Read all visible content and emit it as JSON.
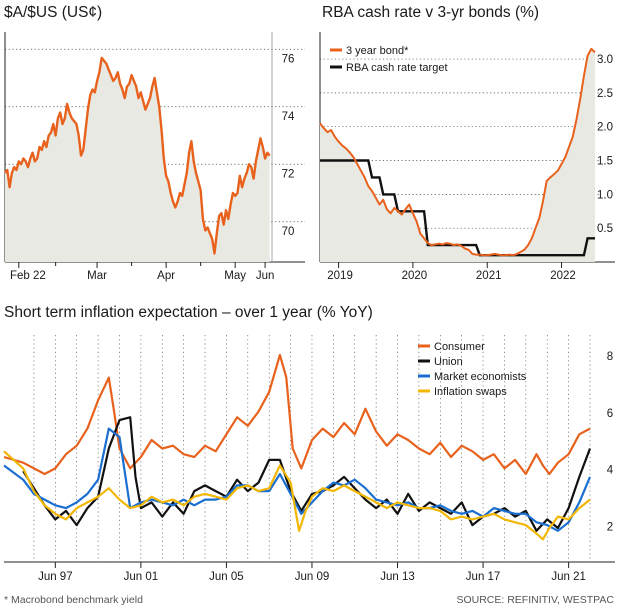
{
  "colors": {
    "orange": "#e8621d",
    "black": "#111111",
    "blue": "#1a6fd1",
    "yellow": "#f2b705",
    "grid": "#444444",
    "fill": "#e9e9e4"
  },
  "titles": {
    "chart1": "$A/$US (US¢)",
    "chart2": "RBA cash rate v 3-yr bonds (%)",
    "chart3": "Short term inflation expectation – over 1 year (% YoY)"
  },
  "footer": {
    "note": "* Macrobond benchmark yield",
    "source": "SOURCE: REFINITIV, WESTPAC"
  },
  "chart_data": [
    {
      "type": "line",
      "title": "$A/$US (US¢)",
      "x_tick_labels": [
        "Feb 22",
        "Mar",
        "Apr",
        "May",
        "Jun"
      ],
      "y_tick_labels": [
        "70",
        "72",
        "74",
        "76"
      ],
      "ylim": [
        68.6,
        76.6
      ],
      "xlim": [
        0,
        116
      ],
      "grid": "horizontal dotted",
      "series": [
        {
          "name": "AUD/USD",
          "color": "#e8621d",
          "values": [
            71.7,
            71.8,
            71.2,
            71.7,
            71.9,
            71.8,
            72.1,
            72.0,
            72.2,
            72.1,
            71.9,
            72.2,
            72.4,
            72.1,
            72.2,
            72.6,
            72.5,
            72.8,
            72.6,
            73.0,
            73.1,
            73.4,
            73.0,
            73.6,
            73.8,
            73.4,
            73.6,
            74.1,
            73.8,
            73.6,
            73.5,
            73.4,
            73.0,
            72.3,
            72.5,
            73.2,
            73.9,
            74.4,
            74.6,
            74.5,
            74.9,
            75.2,
            75.7,
            75.6,
            75.5,
            75.3,
            75.1,
            74.9,
            75.0,
            75.2,
            74.8,
            74.6,
            74.3,
            74.7,
            74.8,
            75.1,
            74.9,
            74.7,
            74.3,
            74.5,
            74.2,
            73.9,
            74.1,
            74.3,
            74.7,
            75.0,
            74.5,
            74.0,
            73.2,
            72.2,
            71.6,
            71.4,
            71.0,
            70.7,
            70.5,
            70.7,
            71.0,
            70.9,
            71.3,
            71.7,
            72.4,
            72.8,
            72.1,
            71.7,
            71.4,
            71.1,
            70.1,
            69.7,
            69.8,
            69.6,
            69.4,
            68.9,
            69.6,
            70.2,
            70.3,
            69.9,
            70.4,
            70.1,
            70.6,
            71.0,
            70.9,
            71.0,
            71.6,
            71.2,
            71.5,
            71.7,
            72.0,
            71.9,
            71.5,
            72.1,
            72.5,
            72.9,
            72.6,
            72.2,
            72.4,
            72.3
          ]
        }
      ]
    },
    {
      "type": "line",
      "title": "RBA cash rate v 3-yr bonds (%)",
      "x_tick_labels": [
        "2019",
        "2020",
        "2021",
        "2022"
      ],
      "y_tick_labels": [
        "0.5",
        "1.0",
        "1.5",
        "2.0",
        "2.5",
        "3.0"
      ],
      "ylim": [
        0,
        3.4
      ],
      "xlim": [
        2018.75,
        2022.45
      ],
      "grid": "horizontal dotted",
      "legend": [
        "3 year bond*",
        "RBA cash rate target"
      ],
      "series": [
        {
          "name": "3 year bond*",
          "color": "#e8621d",
          "x": [
            2018.75,
            2018.8,
            2018.85,
            2018.9,
            2018.95,
            2019.0,
            2019.05,
            2019.1,
            2019.15,
            2019.2,
            2019.25,
            2019.3,
            2019.35,
            2019.4,
            2019.45,
            2019.5,
            2019.55,
            2019.6,
            2019.65,
            2019.7,
            2019.75,
            2019.8,
            2019.85,
            2019.9,
            2019.95,
            2020.0,
            2020.05,
            2020.1,
            2020.15,
            2020.2,
            2020.25,
            2020.3,
            2020.35,
            2020.4,
            2020.45,
            2020.5,
            2020.55,
            2020.6,
            2020.65,
            2020.7,
            2020.75,
            2020.8,
            2020.85,
            2020.9,
            2020.95,
            2021.0,
            2021.05,
            2021.1,
            2021.15,
            2021.2,
            2021.25,
            2021.3,
            2021.35,
            2021.4,
            2021.45,
            2021.5,
            2021.55,
            2021.6,
            2021.65,
            2021.7,
            2021.75,
            2021.8,
            2021.85,
            2021.9,
            2021.95,
            2022.0,
            2022.05,
            2022.1,
            2022.15,
            2022.2,
            2022.25,
            2022.3,
            2022.35,
            2022.4,
            2022.45
          ],
          "values": [
            2.05,
            1.98,
            1.92,
            1.95,
            1.85,
            1.78,
            1.72,
            1.68,
            1.62,
            1.55,
            1.45,
            1.35,
            1.25,
            1.12,
            1.05,
            0.95,
            0.85,
            0.92,
            0.78,
            0.72,
            0.8,
            0.75,
            0.7,
            0.78,
            0.85,
            0.72,
            0.6,
            0.42,
            0.35,
            0.28,
            0.25,
            0.26,
            0.27,
            0.26,
            0.28,
            0.27,
            0.25,
            0.26,
            0.24,
            0.2,
            0.18,
            0.12,
            0.11,
            0.11,
            0.1,
            0.1,
            0.11,
            0.12,
            0.11,
            0.1,
            0.1,
            0.11,
            0.1,
            0.12,
            0.15,
            0.18,
            0.25,
            0.35,
            0.5,
            0.65,
            0.9,
            1.2,
            1.25,
            1.3,
            1.35,
            1.45,
            1.55,
            1.7,
            1.85,
            2.1,
            2.4,
            2.75,
            3.05,
            3.15,
            3.1
          ]
        },
        {
          "name": "RBA cash rate target",
          "color": "#111111",
          "x": [
            2018.75,
            2019.4,
            2019.45,
            2019.55,
            2019.6,
            2019.75,
            2019.8,
            2020.15,
            2020.2,
            2020.85,
            2020.9,
            2022.3,
            2022.35,
            2022.45
          ],
          "values": [
            1.5,
            1.5,
            1.25,
            1.25,
            1.0,
            1.0,
            0.75,
            0.75,
            0.25,
            0.25,
            0.1,
            0.1,
            0.35,
            0.35
          ]
        }
      ]
    },
    {
      "type": "line",
      "title": "Short term inflation expectation – over 1 year (% YoY)",
      "x_tick_labels": [
        "Jun 97",
        "Jun 01",
        "Jun 05",
        "Jun 09",
        "Jun 13",
        "Jun 17",
        "Jun 21"
      ],
      "y_tick_labels": [
        "2",
        "4",
        "6",
        "8"
      ],
      "ylim": [
        0.5,
        8.5
      ],
      "xlim": [
        1995.1,
        2022.5
      ],
      "grid": "vertical dotted",
      "legend": [
        "Consumer",
        "Union",
        "Market economists",
        "Inflation swaps"
      ],
      "series": [
        {
          "name": "Consumer",
          "color": "#e8621d",
          "x": [
            1995.1,
            1996.0,
            1997.0,
            1997.5,
            1998.0,
            1998.5,
            1999.0,
            1999.5,
            2000.0,
            2000.25,
            2000.5,
            2001.0,
            2001.5,
            2002.0,
            2002.5,
            2003.0,
            2003.5,
            2004.0,
            2004.5,
            2005.0,
            2005.5,
            2006.0,
            2006.5,
            2007.0,
            2007.5,
            2008.0,
            2008.3,
            2008.6,
            2009.0,
            2009.5,
            2010.0,
            2010.5,
            2011.0,
            2011.5,
            2012.0,
            2012.5,
            2013.0,
            2013.5,
            2014.0,
            2014.5,
            2015.0,
            2015.5,
            2016.0,
            2016.5,
            2017.0,
            2017.5,
            2018.0,
            2018.5,
            2019.0,
            2019.5,
            2020.0,
            2020.3,
            2020.6,
            2021.0,
            2021.5,
            2022.0,
            2022.5
          ],
          "values": [
            4.2,
            4.0,
            3.6,
            3.8,
            4.3,
            4.6,
            5.2,
            6.2,
            7.0,
            5.8,
            4.5,
            3.8,
            4.2,
            4.8,
            4.5,
            4.6,
            4.3,
            4.2,
            4.6,
            4.4,
            5.0,
            5.6,
            5.3,
            5.8,
            6.5,
            7.8,
            7.0,
            4.5,
            3.8,
            4.8,
            5.2,
            4.9,
            5.4,
            5.0,
            5.9,
            5.1,
            4.6,
            5.0,
            4.8,
            4.5,
            4.3,
            4.7,
            4.2,
            4.6,
            4.4,
            4.1,
            4.3,
            3.8,
            4.1,
            3.6,
            4.3,
            3.9,
            3.6,
            4.0,
            4.3,
            5.0,
            5.2
          ]
        },
        {
          "name": "Union",
          "color": "#111111",
          "x": [
            1996.0,
            1996.5,
            1997.0,
            1997.5,
            1998.0,
            1998.5,
            1999.0,
            1999.5,
            2000.0,
            2000.5,
            2001.0,
            2001.25,
            2001.5,
            2002.0,
            2002.5,
            2003.0,
            2003.5,
            2004.0,
            2004.5,
            2005.0,
            2005.5,
            2006.0,
            2006.5,
            2007.0,
            2007.5,
            2008.0,
            2008.5,
            2009.0,
            2009.5,
            2010.0,
            2010.5,
            2011.0,
            2011.5,
            2012.0,
            2012.5,
            2013.0,
            2013.5,
            2014.0,
            2014.5,
            2015.0,
            2015.5,
            2016.0,
            2016.5,
            2017.0,
            2017.5,
            2018.0,
            2018.5,
            2019.0,
            2019.5,
            2020.0,
            2020.5,
            2021.0,
            2021.5,
            2022.0,
            2022.5
          ],
          "values": [
            3.7,
            3.1,
            2.5,
            2.0,
            2.3,
            1.8,
            2.4,
            2.8,
            4.5,
            5.5,
            5.6,
            3.5,
            2.4,
            2.6,
            2.1,
            2.6,
            2.2,
            3.0,
            3.2,
            3.0,
            2.8,
            3.4,
            3.0,
            3.3,
            4.1,
            4.1,
            3.0,
            2.3,
            2.9,
            3.0,
            3.2,
            3.5,
            3.1,
            2.7,
            2.4,
            2.7,
            2.2,
            2.9,
            2.3,
            2.6,
            2.4,
            2.2,
            2.6,
            1.8,
            2.1,
            2.2,
            2.4,
            2.1,
            2.3,
            1.6,
            2.0,
            1.7,
            2.4,
            3.5,
            4.5
          ]
        },
        {
          "name": "Market economists",
          "color": "#1a6fd1",
          "x": [
            1995.1,
            1996.0,
            1996.5,
            1997.0,
            1997.5,
            1998.0,
            1998.5,
            1999.0,
            1999.5,
            2000.0,
            2000.5,
            2001.0,
            2001.5,
            2002.0,
            2002.5,
            2003.0,
            2003.5,
            2004.0,
            2004.5,
            2005.0,
            2005.5,
            2006.0,
            2006.5,
            2007.0,
            2007.5,
            2008.0,
            2008.5,
            2009.0,
            2009.5,
            2010.0,
            2010.5,
            2011.0,
            2011.5,
            2012.0,
            2012.5,
            2013.0,
            2013.5,
            2014.0,
            2014.5,
            2015.0,
            2015.5,
            2016.0,
            2016.5,
            2017.0,
            2017.5,
            2018.0,
            2018.5,
            2019.0,
            2019.5,
            2020.0,
            2020.5,
            2021.0,
            2021.5,
            2022.0,
            2022.5
          ],
          "values": [
            3.9,
            3.4,
            2.9,
            2.7,
            2.5,
            2.4,
            2.6,
            2.9,
            3.4,
            5.2,
            4.9,
            2.4,
            2.6,
            2.7,
            2.6,
            2.5,
            2.7,
            2.5,
            2.7,
            2.7,
            2.8,
            3.2,
            3.2,
            3.0,
            3.0,
            3.6,
            2.9,
            2.2,
            2.6,
            3.0,
            3.3,
            3.2,
            3.4,
            3.1,
            2.7,
            2.6,
            2.5,
            2.6,
            2.4,
            2.4,
            2.5,
            2.3,
            2.2,
            2.3,
            2.1,
            2.4,
            2.3,
            2.2,
            2.2,
            1.9,
            1.8,
            1.6,
            1.9,
            2.6,
            3.5
          ]
        },
        {
          "name": "Inflation swaps",
          "color": "#f2b705",
          "x": [
            1995.1,
            1996.0,
            1996.5,
            1997.0,
            1997.5,
            1998.0,
            1998.5,
            1999.0,
            1999.5,
            2000.0,
            2000.5,
            2001.0,
            2001.5,
            2002.0,
            2002.5,
            2003.0,
            2003.5,
            2004.0,
            2004.5,
            2005.0,
            2005.5,
            2006.0,
            2006.5,
            2007.0,
            2007.5,
            2008.0,
            2008.5,
            2008.9,
            2009.2,
            2009.5,
            2010.0,
            2010.5,
            2011.0,
            2011.5,
            2012.0,
            2012.5,
            2013.0,
            2013.5,
            2014.0,
            2014.5,
            2015.0,
            2015.5,
            2016.0,
            2016.5,
            2017.0,
            2017.5,
            2018.0,
            2018.5,
            2019.0,
            2019.5,
            2020.0,
            2020.3,
            2020.6,
            2021.0,
            2021.5,
            2022.0,
            2022.5
          ],
          "values": [
            4.4,
            3.8,
            3.0,
            2.5,
            2.2,
            2.0,
            2.4,
            2.6,
            2.8,
            3.1,
            2.7,
            2.4,
            2.5,
            2.8,
            2.6,
            2.7,
            2.5,
            2.8,
            2.9,
            2.8,
            2.7,
            3.1,
            3.2,
            3.0,
            3.1,
            3.9,
            3.3,
            1.6,
            2.3,
            2.8,
            3.1,
            3.0,
            3.2,
            3.0,
            2.8,
            2.6,
            2.4,
            2.6,
            2.5,
            2.4,
            2.4,
            2.3,
            2.0,
            2.1,
            2.0,
            2.1,
            2.2,
            2.0,
            1.9,
            1.8,
            1.5,
            1.3,
            1.7,
            2.1,
            2.0,
            2.4,
            2.7
          ]
        }
      ]
    }
  ]
}
